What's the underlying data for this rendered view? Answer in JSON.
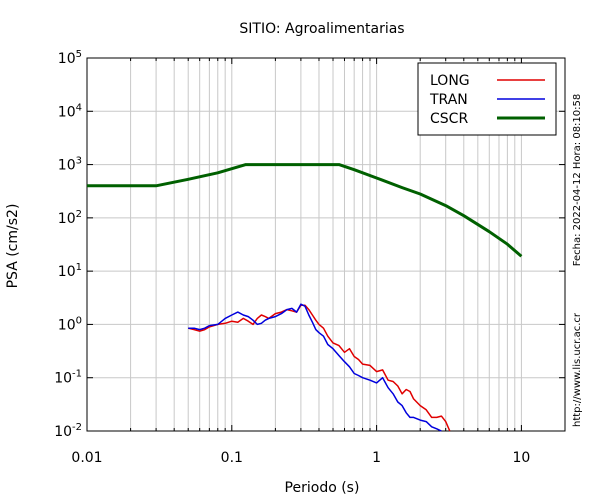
{
  "chart_data": {
    "type": "line",
    "title": "SITIO: Agroalimentarias",
    "xlabel": "Periodo (s)",
    "ylabel": "PSA (cm/s2)",
    "x_scale": "log",
    "y_scale": "log",
    "xlim": [
      0.01,
      20
    ],
    "ylim": [
      0.01,
      100000
    ],
    "grid": true,
    "legend_position": "top-right",
    "x_tick_labels": [
      {
        "value": 0.01,
        "label": "0.01"
      },
      {
        "value": 0.1,
        "label": "0.1"
      },
      {
        "value": 1,
        "label": "1"
      },
      {
        "value": 10,
        "label": "10"
      }
    ],
    "y_tick_labels": [
      {
        "value": 0.01,
        "base": "10",
        "exp": "-2"
      },
      {
        "value": 0.1,
        "base": "10",
        "exp": "-1"
      },
      {
        "value": 1,
        "base": "10",
        "exp": "0"
      },
      {
        "value": 10,
        "base": "10",
        "exp": "1"
      },
      {
        "value": 100,
        "base": "10",
        "exp": "2"
      },
      {
        "value": 1000,
        "base": "10",
        "exp": "3"
      },
      {
        "value": 10000,
        "base": "10",
        "exp": "4"
      },
      {
        "value": 100000,
        "base": "10",
        "exp": "5"
      }
    ],
    "series": [
      {
        "name": "LONG",
        "color": "#e00000",
        "x": [
          0.05,
          0.055,
          0.06,
          0.065,
          0.07,
          0.08,
          0.09,
          0.1,
          0.11,
          0.12,
          0.13,
          0.14,
          0.15,
          0.16,
          0.17,
          0.18,
          0.2,
          0.22,
          0.24,
          0.26,
          0.28,
          0.3,
          0.32,
          0.34,
          0.36,
          0.38,
          0.4,
          0.43,
          0.46,
          0.5,
          0.55,
          0.6,
          0.65,
          0.7,
          0.75,
          0.8,
          0.9,
          1.0,
          1.1,
          1.2,
          1.3,
          1.4,
          1.5,
          1.6,
          1.7,
          1.8,
          2.0,
          2.2,
          2.4,
          2.6,
          2.8,
          3.0,
          3.2
        ],
        "y": [
          0.85,
          0.8,
          0.75,
          0.8,
          0.9,
          1.0,
          1.05,
          1.15,
          1.1,
          1.3,
          1.15,
          1.0,
          1.3,
          1.5,
          1.4,
          1.3,
          1.6,
          1.7,
          1.9,
          1.8,
          1.7,
          2.3,
          2.3,
          1.9,
          1.5,
          1.2,
          1.0,
          0.85,
          0.6,
          0.45,
          0.4,
          0.3,
          0.35,
          0.25,
          0.22,
          0.18,
          0.17,
          0.13,
          0.14,
          0.09,
          0.085,
          0.07,
          0.05,
          0.06,
          0.055,
          0.04,
          0.03,
          0.025,
          0.018,
          0.018,
          0.019,
          0.015,
          0.01
        ]
      },
      {
        "name": "TRAN",
        "color": "#0000dd",
        "x": [
          0.05,
          0.055,
          0.06,
          0.065,
          0.07,
          0.08,
          0.09,
          0.1,
          0.11,
          0.12,
          0.13,
          0.14,
          0.15,
          0.16,
          0.17,
          0.18,
          0.2,
          0.22,
          0.24,
          0.26,
          0.28,
          0.3,
          0.32,
          0.34,
          0.36,
          0.38,
          0.4,
          0.43,
          0.46,
          0.5,
          0.55,
          0.6,
          0.65,
          0.7,
          0.75,
          0.8,
          0.9,
          1.0,
          1.1,
          1.2,
          1.3,
          1.4,
          1.5,
          1.6,
          1.7,
          1.8,
          2.0,
          2.2,
          2.4,
          2.6,
          2.8
        ],
        "y": [
          0.85,
          0.85,
          0.8,
          0.85,
          0.95,
          1.0,
          1.3,
          1.5,
          1.7,
          1.5,
          1.4,
          1.2,
          1.0,
          1.05,
          1.2,
          1.3,
          1.4,
          1.6,
          1.9,
          2.0,
          1.7,
          2.4,
          2.2,
          1.5,
          1.1,
          0.8,
          0.7,
          0.6,
          0.42,
          0.35,
          0.26,
          0.2,
          0.16,
          0.12,
          0.11,
          0.1,
          0.09,
          0.08,
          0.1,
          0.065,
          0.05,
          0.035,
          0.03,
          0.022,
          0.018,
          0.018,
          0.016,
          0.015,
          0.012,
          0.011,
          0.01
        ]
      },
      {
        "name": "CSCR",
        "color": "#006000",
        "x": [
          0.01,
          0.03,
          0.05,
          0.08,
          0.125,
          0.2,
          0.3,
          0.4,
          0.55,
          0.7,
          1.0,
          1.5,
          2.0,
          3.0,
          4.0,
          6.0,
          8.0,
          10.0
        ],
        "y": [
          400,
          400,
          530,
          700,
          1000,
          1000,
          1000,
          1000,
          1000,
          800,
          560,
          370,
          280,
          170,
          110,
          55,
          32,
          19
        ]
      }
    ]
  },
  "side_labels": {
    "timestamp": "Fecha: 2022-04-12 Hora: 08:10:58",
    "website": "http://www.lis.ucr.ac.cr"
  }
}
